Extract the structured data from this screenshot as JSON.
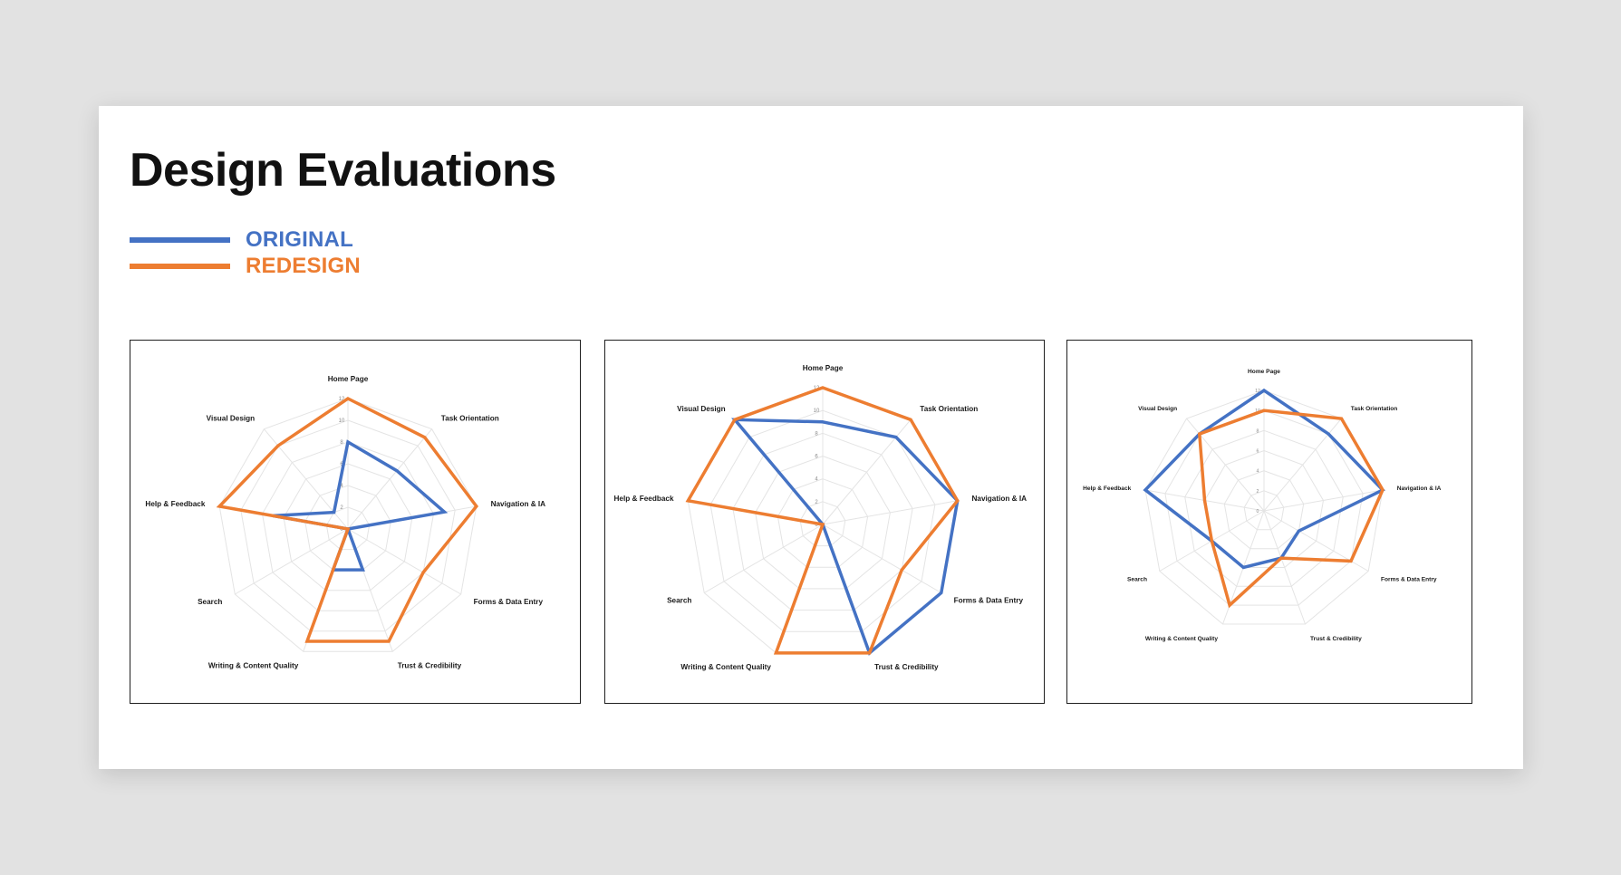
{
  "page": {
    "title": "Design Evaluations"
  },
  "legend": [
    {
      "label": "ORIGINAL",
      "color": "#4472c4"
    },
    {
      "label": "REDESIGN",
      "color": "#ed7d31"
    }
  ],
  "chart_data": [
    {
      "type": "radar",
      "categories": [
        "Home Page",
        "Task Orientation",
        "Navigation & IA",
        "Forms & Data Entry",
        "Trust & Credibility",
        "Writing & Content Quality",
        "Search",
        "Help & Feedback",
        "Visual Design"
      ],
      "rlim": [
        0,
        12
      ],
      "ticks": [
        "0",
        "2",
        "4",
        "6",
        "8",
        "10",
        "12"
      ],
      "grid": true,
      "series": [
        {
          "name": "ORIGINAL",
          "color": "#4472c4",
          "values": [
            8,
            7,
            9,
            0,
            4,
            4,
            0,
            7,
            2
          ]
        },
        {
          "name": "REDESIGN",
          "color": "#ed7d31",
          "values": [
            12,
            11,
            12,
            8,
            11,
            11,
            0,
            12,
            10
          ]
        }
      ]
    },
    {
      "type": "radar",
      "categories": [
        "Home Page",
        "Task Orientation",
        "Navigation & IA",
        "Forms & Data Entry",
        "Trust & Credibility",
        "Writing & Content Quality",
        "Search",
        "Help & Feedback",
        "Visual Design"
      ],
      "rlim": [
        0,
        12
      ],
      "ticks": [
        "0",
        "2",
        "4",
        "6",
        "8",
        "10",
        "12"
      ],
      "grid": true,
      "series": [
        {
          "name": "ORIGINAL",
          "color": "#4472c4",
          "values": [
            9,
            10,
            12,
            12,
            12,
            0,
            0,
            0,
            12
          ]
        },
        {
          "name": "REDESIGN",
          "color": "#ed7d31",
          "values": [
            12,
            12,
            12,
            8,
            12,
            12,
            0,
            12,
            12
          ]
        }
      ]
    },
    {
      "type": "radar",
      "categories": [
        "Home Page",
        "Task Orientation",
        "Navigation & IA",
        "Forms & Data Entry",
        "Trust & Credibility",
        "Writing & Content Quality",
        "Search",
        "Help & Feedback",
        "Visual Design"
      ],
      "rlim": [
        0,
        12
      ],
      "ticks": [
        "0",
        "2",
        "4",
        "6",
        "8",
        "10",
        "12"
      ],
      "grid": true,
      "series": [
        {
          "name": "ORIGINAL",
          "color": "#4472c4",
          "values": [
            12,
            10,
            12,
            4,
            5,
            6,
            6,
            12,
            10
          ]
        },
        {
          "name": "REDESIGN",
          "color": "#ed7d31",
          "values": [
            10,
            12,
            12,
            10,
            5,
            10,
            6,
            6,
            10
          ]
        }
      ]
    }
  ]
}
